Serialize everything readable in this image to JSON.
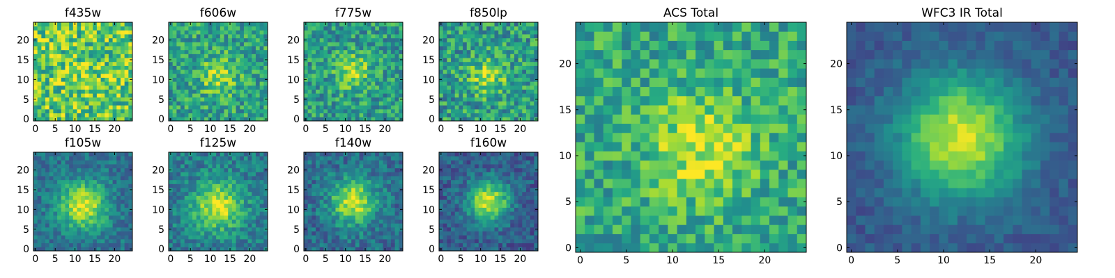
{
  "chart_data": [
    {
      "type": "heatmap",
      "title": "f435w",
      "grid": [
        25,
        25
      ],
      "xticks": [
        "0",
        "5",
        "10",
        "15",
        "20"
      ],
      "yticks": [
        "0",
        "5",
        "10",
        "15",
        "20"
      ],
      "xlim": [
        0,
        24
      ],
      "ylim": [
        0,
        24
      ],
      "colormap": "viridis",
      "peak": {
        "x": 12,
        "y": 11,
        "strength": 0.08,
        "width": 3.5
      },
      "noise": 0.28,
      "base": 0.74,
      "seed": 11
    },
    {
      "type": "heatmap",
      "title": "f606w",
      "grid": [
        25,
        25
      ],
      "xticks": [
        "0",
        "5",
        "10",
        "15",
        "20"
      ],
      "yticks": [
        "0",
        "5",
        "10",
        "15",
        "20"
      ],
      "xlim": [
        0,
        24
      ],
      "ylim": [
        0,
        24
      ],
      "colormap": "viridis",
      "peak": {
        "x": 12,
        "y": 11,
        "strength": 0.3,
        "width": 3.2
      },
      "noise": 0.22,
      "base": 0.58,
      "seed": 23
    },
    {
      "type": "heatmap",
      "title": "f775w",
      "grid": [
        25,
        25
      ],
      "xticks": [
        "0",
        "5",
        "10",
        "15",
        "20"
      ],
      "yticks": [
        "0",
        "5",
        "10",
        "15",
        "20"
      ],
      "xlim": [
        0,
        24
      ],
      "ylim": [
        0,
        24
      ],
      "colormap": "viridis",
      "peak": {
        "x": 12,
        "y": 12,
        "strength": 0.34,
        "width": 3.0
      },
      "noise": 0.22,
      "base": 0.55,
      "seed": 37
    },
    {
      "type": "heatmap",
      "title": "f850lp",
      "grid": [
        25,
        25
      ],
      "xticks": [
        "0",
        "5",
        "10",
        "15",
        "20"
      ],
      "yticks": [
        "0",
        "5",
        "10",
        "15",
        "20"
      ],
      "xlim": [
        0,
        24
      ],
      "ylim": [
        0,
        24
      ],
      "colormap": "viridis",
      "peak": {
        "x": 12,
        "y": 11,
        "strength": 0.3,
        "width": 3.4
      },
      "noise": 0.24,
      "base": 0.55,
      "seed": 41
    },
    {
      "type": "heatmap",
      "title": "f105w",
      "grid": [
        25,
        25
      ],
      "xticks": [
        "0",
        "5",
        "10",
        "15",
        "20"
      ],
      "yticks": [
        "0",
        "5",
        "10",
        "15",
        "20"
      ],
      "xlim": [
        0,
        24
      ],
      "ylim": [
        0,
        24
      ],
      "colormap": "viridis",
      "peak": {
        "x": 12,
        "y": 11,
        "strength": 0.58,
        "width": 4.2
      },
      "noise": 0.14,
      "base": 0.38,
      "seed": 53
    },
    {
      "type": "heatmap",
      "title": "f125w",
      "grid": [
        25,
        25
      ],
      "xticks": [
        "0",
        "5",
        "10",
        "15",
        "20"
      ],
      "yticks": [
        "0",
        "5",
        "10",
        "15",
        "20"
      ],
      "xlim": [
        0,
        24
      ],
      "ylim": [
        0,
        24
      ],
      "colormap": "viridis",
      "peak": {
        "x": 12,
        "y": 11,
        "strength": 0.52,
        "width": 4.4
      },
      "noise": 0.16,
      "base": 0.42,
      "seed": 67
    },
    {
      "type": "heatmap",
      "title": "f140w",
      "grid": [
        25,
        25
      ],
      "xticks": [
        "0",
        "5",
        "10",
        "15",
        "20"
      ],
      "yticks": [
        "0",
        "5",
        "10",
        "15",
        "20"
      ],
      "xlim": [
        0,
        24
      ],
      "ylim": [
        0,
        24
      ],
      "colormap": "viridis",
      "peak": {
        "x": 12,
        "y": 12,
        "strength": 0.58,
        "width": 4.0
      },
      "noise": 0.16,
      "base": 0.36,
      "seed": 79
    },
    {
      "type": "heatmap",
      "title": "f160w",
      "grid": [
        25,
        25
      ],
      "xticks": [
        "0",
        "5",
        "10",
        "15",
        "20"
      ],
      "yticks": [
        "0",
        "5",
        "10",
        "15",
        "20"
      ],
      "xlim": [
        0,
        24
      ],
      "ylim": [
        0,
        24
      ],
      "colormap": "viridis",
      "peak": {
        "x": 12,
        "y": 12,
        "strength": 0.66,
        "width": 3.6
      },
      "noise": 0.14,
      "base": 0.3,
      "seed": 83
    },
    {
      "type": "heatmap",
      "title": "ACS Total",
      "grid": [
        25,
        25
      ],
      "xticks": [
        "0",
        "5",
        "10",
        "15",
        "20"
      ],
      "yticks": [
        "0",
        "5",
        "10",
        "15",
        "20"
      ],
      "xlim": [
        0,
        24
      ],
      "ylim": [
        0,
        24
      ],
      "colormap": "viridis",
      "peak": {
        "x": 13,
        "y": 11,
        "strength": 0.32,
        "width": 4.0
      },
      "noise": 0.2,
      "base": 0.6,
      "seed": 97
    },
    {
      "type": "heatmap",
      "title": "WFC3 IR Total",
      "grid": [
        25,
        25
      ],
      "xticks": [
        "0",
        "5",
        "10",
        "15",
        "20"
      ],
      "yticks": [
        "0",
        "5",
        "10",
        "15",
        "20"
      ],
      "xlim": [
        0,
        24
      ],
      "ylim": [
        0,
        24
      ],
      "colormap": "viridis",
      "peak": {
        "x": 12,
        "y": 12,
        "strength": 0.66,
        "width": 4.6
      },
      "noise": 0.08,
      "base": 0.28,
      "seed": 101
    }
  ]
}
